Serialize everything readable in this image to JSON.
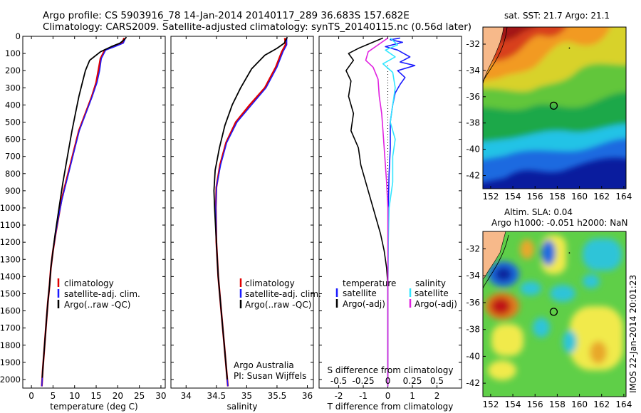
{
  "header": {
    "line1": "Argo profile: CS 5903916_78 14-Jan-2014 20140117_289 36.683S 157.682E",
    "line2": "Climatology: CARS2009. Satellite-adjusted climatology: synTS_20140115.nc (0.56d later)"
  },
  "map_titles": {
    "sst": "sat. SST: 21.7 Argo: 21.1",
    "sla_line1": "Altim. SLA: 0.04",
    "sla_line2": "Argo h1000: -0.051 h2000: NaN"
  },
  "side_text": "IMOS 22-Jan-2014 20:01:23",
  "credit": {
    "line1": "Argo Australia",
    "line2": "PI: Susan Wijffels"
  },
  "colors": {
    "climatology": "#e00000",
    "satellite": "#1a1aff",
    "argo": "#000000",
    "sat_salinity": "#33e6ff",
    "argo_salinity": "#e020e0"
  },
  "chart_data": [
    {
      "type": "line",
      "name": "temperature",
      "xlabel": "temperature (deg C)",
      "xlim": [
        -2,
        31
      ],
      "xticks": [
        0,
        5,
        10,
        15,
        20,
        25,
        30
      ],
      "ylim": [
        2050,
        0
      ],
      "yticks": [
        0,
        100,
        200,
        300,
        400,
        500,
        600,
        700,
        800,
        900,
        1000,
        1100,
        1200,
        1300,
        1400,
        1500,
        1600,
        1700,
        1800,
        1900,
        2000
      ],
      "legend": [
        "climatology",
        "satellite-adj. clim.",
        "Argo(..raw -QC)"
      ],
      "series": [
        {
          "name": "climatology",
          "color": "#e00000",
          "width": 2.5,
          "points": [
            [
              21.5,
              10
            ],
            [
              21,
              40
            ],
            [
              19,
              60
            ],
            [
              17,
              80
            ],
            [
              16,
              130
            ],
            [
              15.5,
              200
            ],
            [
              15,
              270
            ],
            [
              14,
              350
            ],
            [
              12.5,
              450
            ],
            [
              11,
              550
            ],
            [
              10,
              650
            ],
            [
              9,
              750
            ],
            [
              8,
              850
            ],
            [
              7,
              950
            ],
            [
              6.3,
              1050
            ],
            [
              5.6,
              1150
            ],
            [
              5,
              1250
            ],
            [
              4.5,
              1350
            ],
            [
              4.2,
              1450
            ],
            [
              3.8,
              1550
            ],
            [
              3.5,
              1650
            ],
            [
              3.2,
              1750
            ],
            [
              2.9,
              1850
            ],
            [
              2.6,
              1950
            ],
            [
              2.4,
              2040
            ]
          ]
        },
        {
          "name": "satellite-adj. clim.",
          "color": "#1a1aff",
          "width": 1.5,
          "points": [
            [
              21.8,
              10
            ],
            [
              21.3,
              40
            ],
            [
              19.3,
              60
            ],
            [
              17.2,
              80
            ],
            [
              16.2,
              130
            ],
            [
              15.8,
              200
            ],
            [
              15.2,
              270
            ],
            [
              14.1,
              350
            ],
            [
              12.6,
              450
            ],
            [
              11.1,
              550
            ],
            [
              10.1,
              650
            ],
            [
              9.1,
              750
            ],
            [
              8.1,
              850
            ],
            [
              7.1,
              950
            ],
            [
              6.3,
              1050
            ],
            [
              5.6,
              1150
            ],
            [
              5,
              1250
            ],
            [
              4.5,
              1350
            ],
            [
              4.2,
              1450
            ],
            [
              3.8,
              1550
            ],
            [
              3.5,
              1650
            ],
            [
              3.2,
              1750
            ],
            [
              2.9,
              1850
            ],
            [
              2.6,
              1950
            ],
            [
              2.4,
              2040
            ]
          ]
        },
        {
          "name": "Argo(..raw -QC)",
          "color": "#000000",
          "width": 1.8,
          "points": [
            [
              22,
              5
            ],
            [
              21.5,
              20
            ],
            [
              20.5,
              40
            ],
            [
              18.5,
              60
            ],
            [
              16,
              90
            ],
            [
              13.5,
              140
            ],
            [
              12.5,
              200
            ],
            [
              11.8,
              270
            ],
            [
              11,
              350
            ],
            [
              10.2,
              450
            ],
            [
              9.4,
              550
            ],
            [
              8.7,
              650
            ],
            [
              8,
              750
            ],
            [
              7.3,
              850
            ],
            [
              6.7,
              950
            ],
            [
              6.1,
              1050
            ],
            [
              5.5,
              1150
            ],
            [
              5,
              1250
            ],
            [
              4.5,
              1350
            ],
            [
              4.2,
              1450
            ],
            [
              3.8,
              1550
            ],
            [
              3.5,
              1650
            ],
            [
              3.2,
              1750
            ],
            [
              2.9,
              1850
            ],
            [
              2.6,
              1950
            ],
            [
              2.5,
              1990
            ]
          ]
        }
      ]
    },
    {
      "type": "line",
      "name": "salinity",
      "xlabel": "salinity",
      "xlim": [
        33.75,
        36.1
      ],
      "xticks": [
        34,
        34.5,
        35,
        35.5,
        36
      ],
      "ylim": [
        2050,
        0
      ],
      "legend": [
        "climatology",
        "satellite-adj. clim.",
        "Argo(..raw -QC)"
      ],
      "series": [
        {
          "name": "climatology",
          "color": "#e00000",
          "width": 2.5,
          "points": [
            [
              35.63,
              10
            ],
            [
              35.64,
              50
            ],
            [
              35.58,
              90
            ],
            [
              35.48,
              180
            ],
            [
              35.3,
              300
            ],
            [
              35.05,
              400
            ],
            [
              34.82,
              500
            ],
            [
              34.66,
              620
            ],
            [
              34.56,
              750
            ],
            [
              34.5,
              880
            ],
            [
              34.49,
              1000
            ],
            [
              34.5,
              1200
            ],
            [
              34.53,
              1400
            ],
            [
              34.58,
              1600
            ],
            [
              34.63,
              1800
            ],
            [
              34.68,
              2000
            ],
            [
              34.69,
              2040
            ]
          ]
        },
        {
          "name": "satellite-adj. clim.",
          "color": "#1a1aff",
          "width": 1.5,
          "points": [
            [
              35.66,
              10
            ],
            [
              35.66,
              50
            ],
            [
              35.6,
              90
            ],
            [
              35.5,
              180
            ],
            [
              35.32,
              300
            ],
            [
              35.08,
              400
            ],
            [
              34.84,
              500
            ],
            [
              34.67,
              620
            ],
            [
              34.57,
              750
            ],
            [
              34.5,
              880
            ],
            [
              34.49,
              1000
            ],
            [
              34.5,
              1200
            ],
            [
              34.53,
              1400
            ],
            [
              34.58,
              1600
            ],
            [
              34.63,
              1800
            ],
            [
              34.68,
              2000
            ],
            [
              34.69,
              2040
            ]
          ]
        },
        {
          "name": "Argo(..raw -QC)",
          "color": "#000000",
          "width": 1.8,
          "points": [
            [
              35.67,
              5
            ],
            [
              35.62,
              40
            ],
            [
              35.5,
              70
            ],
            [
              35.3,
              110
            ],
            [
              35.08,
              190
            ],
            [
              34.9,
              300
            ],
            [
              34.76,
              400
            ],
            [
              34.64,
              520
            ],
            [
              34.55,
              650
            ],
            [
              34.48,
              780
            ],
            [
              34.46,
              900
            ],
            [
              34.47,
              1000
            ],
            [
              34.5,
              1200
            ],
            [
              34.53,
              1400
            ],
            [
              34.58,
              1600
            ],
            [
              34.63,
              1800
            ],
            [
              34.68,
              2000
            ]
          ]
        }
      ]
    },
    {
      "type": "line",
      "name": "differences",
      "xlabel_top": "S difference from climatology",
      "xlabel": "T difference from climatology",
      "xlim": [
        -2.8,
        3
      ],
      "xticks": [
        -2,
        -1,
        0,
        1,
        2
      ],
      "s_ticks": [
        {
          "x": -2,
          "label": "-0.5"
        },
        {
          "x": -1,
          "label": "-0.25"
        },
        {
          "x": 0,
          "label": "0"
        },
        {
          "x": 1,
          "label": "0.25"
        },
        {
          "x": 2,
          "label": "0.5"
        }
      ],
      "ylim": [
        2050,
        0
      ],
      "legend_temperature": {
        "title": "temperature",
        "items": [
          "satellite",
          "Argo(-adj)"
        ]
      },
      "legend_salinity": {
        "title": "salinity",
        "items": [
          "satellite",
          "Argo(-adj)"
        ]
      },
      "series": [
        {
          "name": "temperature satellite",
          "color": "#1a1aff",
          "width": 1.6,
          "points": [
            [
              0.5,
              10
            ],
            [
              0.1,
              20
            ],
            [
              0.6,
              35
            ],
            [
              -0.1,
              60
            ],
            [
              0.4,
              80
            ],
            [
              0.9,
              120
            ],
            [
              0.5,
              150
            ],
            [
              1.1,
              170
            ],
            [
              0.4,
              200
            ],
            [
              0.7,
              240
            ],
            [
              0.5,
              280
            ],
            [
              0.3,
              330
            ],
            [
              0.2,
              400
            ],
            [
              0.1,
              500
            ],
            [
              0.1,
              650
            ],
            [
              0.05,
              800
            ],
            [
              0.02,
              1000
            ],
            [
              0,
              1500
            ],
            [
              0,
              2040
            ]
          ]
        },
        {
          "name": "temperature Argo(-adj)",
          "color": "#000000",
          "width": 1.6,
          "points": [
            [
              -0.2,
              10
            ],
            [
              -0.7,
              40
            ],
            [
              -1.2,
              70
            ],
            [
              -1.6,
              100
            ],
            [
              -1.4,
              140
            ],
            [
              -1.7,
              200
            ],
            [
              -1.5,
              260
            ],
            [
              -1.6,
              350
            ],
            [
              -1.4,
              450
            ],
            [
              -1.5,
              550
            ],
            [
              -1.2,
              650
            ],
            [
              -1.1,
              750
            ],
            [
              -0.9,
              850
            ],
            [
              -0.7,
              950
            ],
            [
              -0.5,
              1050
            ],
            [
              -0.3,
              1150
            ],
            [
              -0.15,
              1250
            ],
            [
              -0.05,
              1350
            ],
            [
              0,
              1450
            ],
            [
              0,
              2040
            ]
          ]
        },
        {
          "name": "salinity satellite",
          "color": "#33e6ff",
          "width": 1.6,
          "points": [
            [
              0.1,
              10
            ],
            [
              0.4,
              50
            ],
            [
              -0.1,
              80
            ],
            [
              0.3,
              120
            ],
            [
              -0.2,
              160
            ],
            [
              0.2,
              210
            ],
            [
              0.3,
              300
            ],
            [
              0.2,
              400
            ],
            [
              0.1,
              500
            ],
            [
              0.3,
              600
            ],
            [
              0.2,
              700
            ],
            [
              0.2,
              850
            ],
            [
              0.05,
              1000
            ],
            [
              0.02,
              1200
            ],
            [
              0,
              1500
            ],
            [
              0,
              2040
            ]
          ]
        },
        {
          "name": "salinity Argo(-adj)",
          "color": "#e020e0",
          "width": 1.6,
          "points": [
            [
              0,
              10
            ],
            [
              -0.5,
              60
            ],
            [
              -0.8,
              90
            ],
            [
              -0.9,
              140
            ],
            [
              -0.6,
              180
            ],
            [
              -0.4,
              250
            ],
            [
              -0.35,
              350
            ],
            [
              -0.25,
              450
            ],
            [
              -0.2,
              550
            ],
            [
              -0.15,
              650
            ],
            [
              -0.1,
              750
            ],
            [
              -0.05,
              850
            ],
            [
              0,
              1000
            ],
            [
              0,
              2040
            ]
          ]
        }
      ]
    },
    {
      "type": "heatmap",
      "name": "SST map",
      "xlim": [
        151.3,
        164.2
      ],
      "ylim": [
        -43,
        -30.7
      ],
      "xticks": [
        152,
        154,
        156,
        158,
        160,
        162,
        164
      ],
      "yticks": [
        -32,
        -34,
        -36,
        -38,
        -40,
        -42
      ],
      "marker": {
        "lon": 157.682,
        "lat": -36.683
      }
    },
    {
      "type": "heatmap",
      "name": "SLA map",
      "xlim": [
        151.3,
        164.2
      ],
      "ylim": [
        -43,
        -30.7
      ],
      "xticks": [
        152,
        154,
        156,
        158,
        160,
        162,
        164
      ],
      "yticks": [
        -32,
        -34,
        -36,
        -38,
        -40,
        -42
      ],
      "marker": {
        "lon": 157.682,
        "lat": -36.683
      }
    }
  ]
}
